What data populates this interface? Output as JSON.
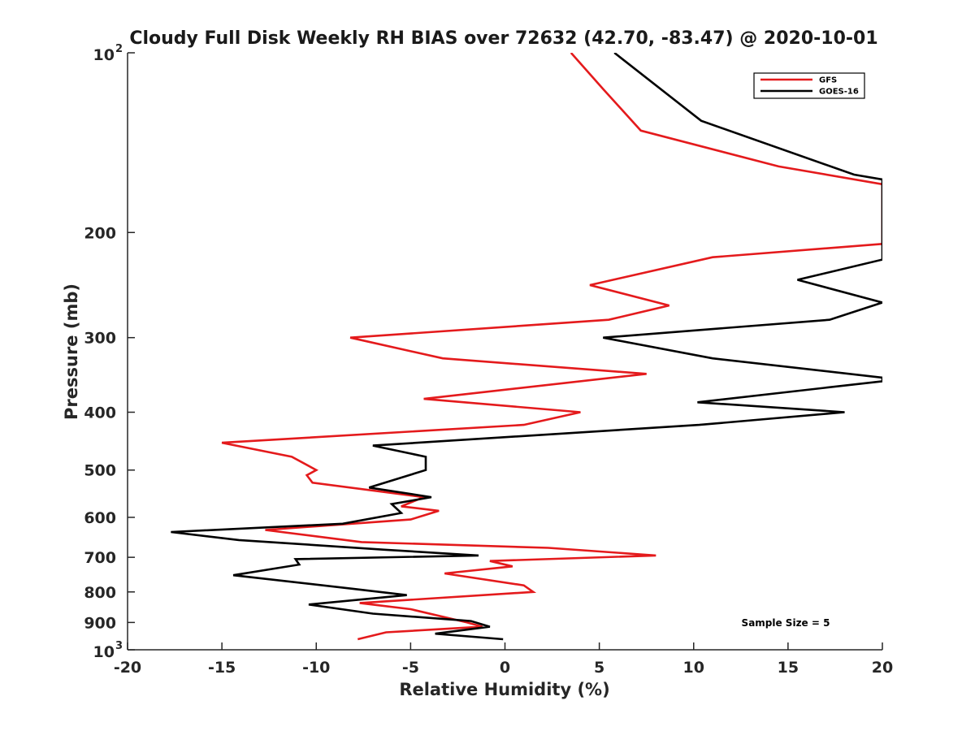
{
  "chart_data": {
    "type": "line",
    "title": "Cloudy Full Disk Weekly RH BIAS over 72632 (42.70, -83.47) @ 2020-10-01",
    "xlabel": "Relative Humidity (%)",
    "ylabel": "Pressure (mb)",
    "xlim": [
      -20,
      20
    ],
    "ylim": [
      100,
      1000
    ],
    "y_scale": "log",
    "y_reversed": true,
    "grid": false,
    "legend_position": "top-right",
    "x_ticks": [
      "-20",
      "-15",
      "-10",
      "-5",
      "0",
      "5",
      "10",
      "15",
      "20"
    ],
    "y_ticks": [
      {
        "value": 100,
        "base": "10",
        "exp": "2"
      },
      {
        "value": 200,
        "label": "200"
      },
      {
        "value": 300,
        "label": "300"
      },
      {
        "value": 400,
        "label": "400"
      },
      {
        "value": 500,
        "label": "500"
      },
      {
        "value": 600,
        "label": "600"
      },
      {
        "value": 700,
        "label": "700"
      },
      {
        "value": 800,
        "label": "800"
      },
      {
        "value": 900,
        "label": "900"
      },
      {
        "value": 1000,
        "base": "10",
        "exp": "3"
      }
    ],
    "annotation": "Sample Size = 5",
    "series": [
      {
        "name": "GFS",
        "color": "#e41a1c",
        "points": [
          [
            3.5,
            100
          ],
          [
            5.2,
            115
          ],
          [
            7.2,
            135
          ],
          [
            14.5,
            155
          ],
          [
            20,
            166
          ],
          [
            20,
            209
          ],
          [
            11,
            220
          ],
          [
            4.5,
            245
          ],
          [
            8.7,
            265
          ],
          [
            5.5,
            280
          ],
          [
            -8.2,
            300
          ],
          [
            -3.3,
            325
          ],
          [
            7.5,
            345
          ],
          [
            -4.3,
            380
          ],
          [
            4,
            400
          ],
          [
            1,
            420
          ],
          [
            -15,
            450
          ],
          [
            -11.3,
            475
          ],
          [
            -10,
            500
          ],
          [
            -10.5,
            510
          ],
          [
            -10.2,
            525
          ],
          [
            -4.3,
            555
          ],
          [
            -5.5,
            575
          ],
          [
            -3.5,
            585
          ],
          [
            -5,
            605
          ],
          [
            -12.7,
            630
          ],
          [
            -7.6,
            660
          ],
          [
            2.3,
            675
          ],
          [
            8,
            695
          ],
          [
            -0.8,
            710
          ],
          [
            0.4,
            725
          ],
          [
            -3.2,
            745
          ],
          [
            1,
            780
          ],
          [
            1.5,
            800
          ],
          [
            -7.7,
            835
          ],
          [
            -5,
            855
          ],
          [
            -2,
            900
          ],
          [
            -1.2,
            915
          ],
          [
            -6.3,
            935
          ],
          [
            -7.8,
            960
          ]
        ]
      },
      {
        "name": "GOES-16",
        "color": "#000000",
        "points": [
          [
            5.8,
            100
          ],
          [
            10.4,
            130
          ],
          [
            18.5,
            160
          ],
          [
            20,
            163
          ],
          [
            20,
            222
          ],
          [
            15.5,
            240
          ],
          [
            20,
            262
          ],
          [
            17.2,
            280
          ],
          [
            5.2,
            300
          ],
          [
            11,
            325
          ],
          [
            20,
            350
          ],
          [
            20,
            355
          ],
          [
            10.2,
            385
          ],
          [
            18,
            400
          ],
          [
            10.3,
            420
          ],
          [
            -7,
            455
          ],
          [
            -4.2,
            475
          ],
          [
            -4.2,
            500
          ],
          [
            -7.2,
            535
          ],
          [
            -3.9,
            555
          ],
          [
            -6,
            570
          ],
          [
            -5.5,
            590
          ],
          [
            -8.6,
            615
          ],
          [
            -17.7,
            635
          ],
          [
            -14.1,
            655
          ],
          [
            -6.3,
            680
          ],
          [
            -1.4,
            695
          ],
          [
            -11.1,
            705
          ],
          [
            -10.9,
            720
          ],
          [
            -14.4,
            750
          ],
          [
            -8.1,
            790
          ],
          [
            -5.2,
            810
          ],
          [
            -10.4,
            840
          ],
          [
            -7,
            870
          ],
          [
            -1.8,
            895
          ],
          [
            -0.8,
            915
          ],
          [
            -3.7,
            940
          ],
          [
            -0.1,
            960
          ]
        ]
      }
    ]
  }
}
